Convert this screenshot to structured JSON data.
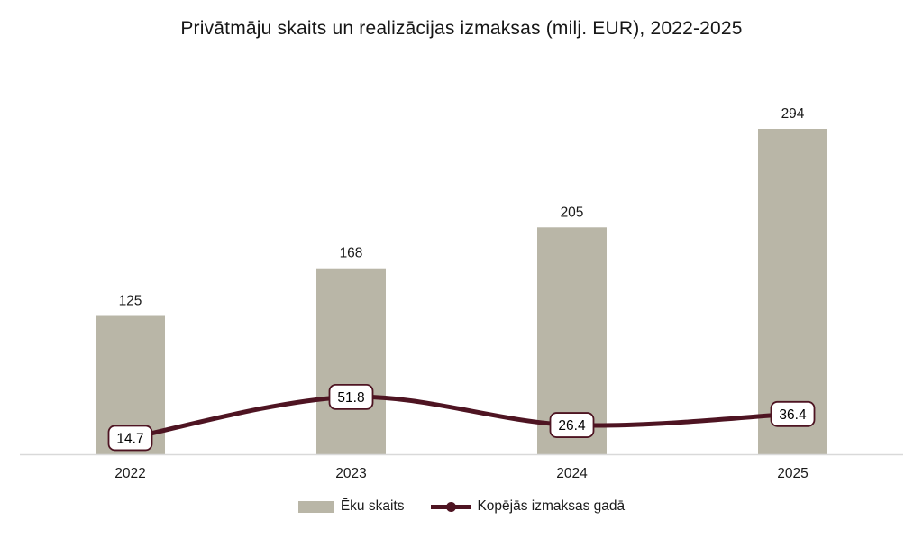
{
  "chart_data": {
    "type": "bar+line",
    "title": "Privātmāju skaits un realizācijas izmaksas (milj. EUR), 2022-2025",
    "categories": [
      "2022",
      "2023",
      "2024",
      "2025"
    ],
    "series": [
      {
        "name": "Ēku skaits",
        "type": "bar",
        "values": [
          125,
          168,
          205,
          294
        ],
        "color": "#b9b6a7"
      },
      {
        "name": "Kopējās izmaksas gadā",
        "type": "line",
        "values": [
          14.7,
          51.8,
          26.4,
          36.4
        ],
        "color": "#4e1422",
        "point_labels": [
          "14.7",
          "51.8",
          "26.4",
          "36.4"
        ]
      }
    ],
    "ylim": [
      0,
      294
    ],
    "grid": false,
    "y_axis_visible": false,
    "legend_position": "bottom",
    "axis_color": "#d9d9d9",
    "label_text_color": "#1a1a1a",
    "point_label_box": {
      "fill": "#ffffff",
      "text_color": "#000000"
    }
  }
}
